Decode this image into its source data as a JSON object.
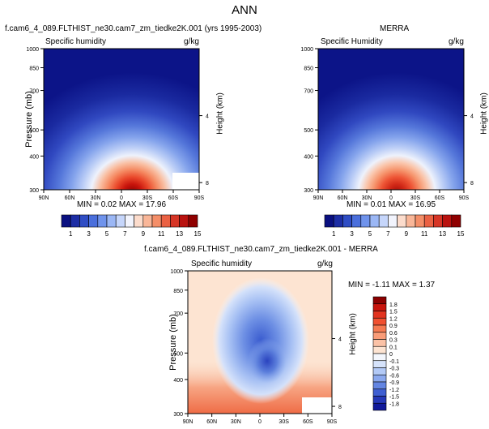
{
  "page": {
    "title": "ANN"
  },
  "chart_data": [
    {
      "type": "heatmap",
      "title": "f.cam6_4_089.FLTHIST_ne30.cam7_zm_tiedke2K.001 (yrs 1995-2003)",
      "subtitle_left": "Specific humidity",
      "subtitle_right": "g/kg",
      "ylabel": "Pressure (mb)",
      "y2label": "Height (km)",
      "x_ticks": [
        "90N",
        "60N",
        "30N",
        "0",
        "30S",
        "60S",
        "90S"
      ],
      "y_ticks": [
        "300",
        "400",
        "500",
        "700",
        "850",
        "1000"
      ],
      "y2_ticks": [
        "8",
        "4"
      ],
      "x_range_lat": [
        90,
        -90
      ],
      "y_range_mb": [
        1000,
        300
      ],
      "log_pressure_axis": true,
      "stats": "MIN =  0.02  MAX = 17.96",
      "min": 0.02,
      "max": 17.96,
      "peak_value": 17.96,
      "palette": "blue-white-red",
      "missing_region_right_bottom": true
    },
    {
      "type": "heatmap",
      "title": "MERRA",
      "subtitle_left": "Specific Humidity",
      "subtitle_right": "g/kg",
      "y2label": "Height (km)",
      "x_ticks": [
        "90N",
        "60N",
        "30N",
        "0",
        "30S",
        "60S",
        "90S"
      ],
      "y_ticks": [
        "300",
        "400",
        "500",
        "700",
        "850",
        "1000"
      ],
      "y2_ticks": [
        "8",
        "4"
      ],
      "x_range_lat": [
        90,
        -90
      ],
      "y_range_mb": [
        1000,
        300
      ],
      "log_pressure_axis": true,
      "stats": "MIN =  0.01  MAX = 16.95",
      "min": 0.01,
      "max": 16.95,
      "peak_value": 16.95,
      "palette": "blue-white-red",
      "missing_region_right_bottom": false
    },
    {
      "type": "heatmap",
      "title": "f.cam6_4_089.FLTHIST_ne30.cam7_zm_tiedke2K.001 - MERRA",
      "subtitle_left": "Specific humidity",
      "subtitle_right": "g/kg",
      "ylabel": "Pressure (mb)",
      "y2label": "Height (km)",
      "x_ticks": [
        "90N",
        "60N",
        "30N",
        "0",
        "30S",
        "60S",
        "90S"
      ],
      "y_ticks": [
        "300",
        "400",
        "500",
        "700",
        "850",
        "1000"
      ],
      "y2_ticks": [
        "8",
        "4"
      ],
      "x_range_lat": [
        90,
        -90
      ],
      "y_range_mb": [
        1000,
        300
      ],
      "log_pressure_axis": true,
      "stats": "MIN = -1.11  MAX =  1.37",
      "min": -1.11,
      "max": 1.37,
      "palette": "diverging blue-red",
      "colorbar": {
        "orientation": "vertical",
        "levels": [
          "1.8",
          "1.5",
          "1.2",
          "0.9",
          "0.6",
          "0.3",
          "0.1",
          "0",
          "-0.1",
          "-0.3",
          "-0.6",
          "-0.9",
          "-1.2",
          "-1.5",
          "-1.8"
        ],
        "colors": [
          "#8b0000",
          "#c8140c",
          "#e2331f",
          "#f05030",
          "#f57a52",
          "#f99c78",
          "#fbc2a6",
          "#fde4d2",
          "#f4f7fd",
          "#d6e3fb",
          "#b2c9f6",
          "#8aa8ee",
          "#6385e2",
          "#3f5fd2",
          "#2538b8",
          "#10199a"
        ]
      }
    }
  ],
  "shared_colorbar": {
    "orientation": "horizontal",
    "labels": [
      "1",
      "3",
      "5",
      "7",
      "9",
      "11",
      "13",
      "15"
    ],
    "colors": [
      "#0a1080",
      "#1d2ea5",
      "#2f4dc4",
      "#4a6fdc",
      "#6f93ec",
      "#9bb7f5",
      "#c6d6fb",
      "#f2f4fd",
      "#fcdccc",
      "#f9b698",
      "#f48e68",
      "#ea6143",
      "#d63526",
      "#b9120f",
      "#8f0000"
    ]
  }
}
